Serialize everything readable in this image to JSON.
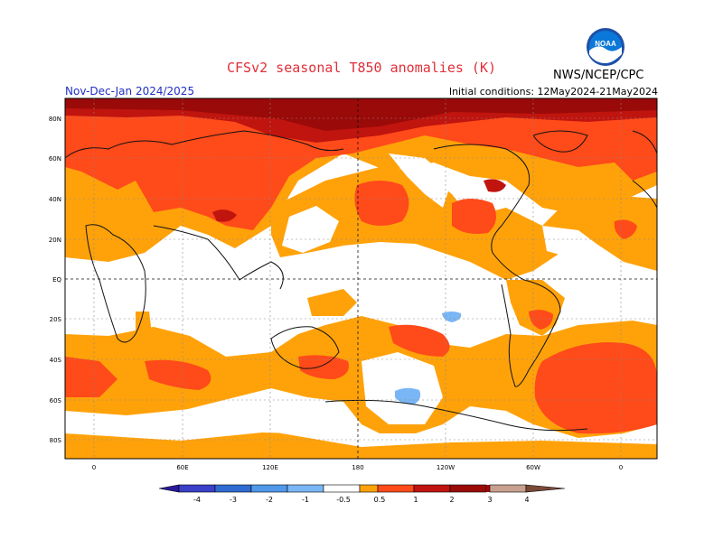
{
  "header": {
    "title": "CFSv2 seasonal T850 anomalies (K)",
    "period": "Nov-Dec-Jan 2024/2025",
    "initial_conditions": "Initial conditions: 12May2024-21May2024",
    "agency": "NWS/NCEP/CPC",
    "logo_text": "NOAA"
  },
  "map": {
    "lat_labels": [
      "80N",
      "60N",
      "40N",
      "20N",
      "EQ",
      "20S",
      "40S",
      "60S",
      "80S"
    ],
    "lon_labels": [
      "0",
      "60E",
      "120E",
      "180",
      "120W",
      "60W",
      "0"
    ]
  },
  "legend": {
    "labels": [
      "-4",
      "-3",
      "-2",
      "-1",
      "-0.5",
      "0.5",
      "1",
      "2",
      "3",
      "4"
    ],
    "colors": [
      "#2a1a9a",
      "#3a40c8",
      "#2f6bd0",
      "#4f98ea",
      "#7ab6f5",
      "#ffffff",
      "#ffa20a",
      "#ff4a1a",
      "#c0140f",
      "#9a0a08",
      "#c8a090",
      "#7a4a38"
    ]
  }
}
